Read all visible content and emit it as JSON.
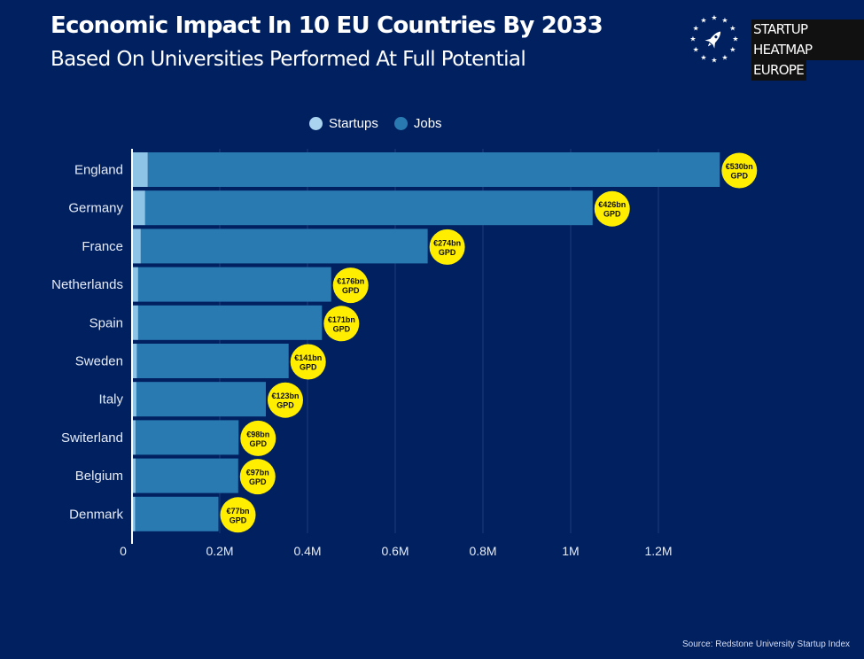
{
  "header": {
    "title": "Economic Impact In 10 EU Countries By 2033",
    "subtitle": "Based On Universities Performed At Full Potential"
  },
  "brand": {
    "line1": "STARTUP HEATMAP",
    "line2": "EUROPE",
    "icon": "rocket-stars-icon"
  },
  "colors": {
    "background": "#002060",
    "startups": "#8ec4e6",
    "jobs": "#2a7ab2",
    "badge": "#ffee00"
  },
  "chart_data": {
    "type": "bar",
    "orientation": "horizontal",
    "stacked": true,
    "categories": [
      "England",
      "Germany",
      "France",
      "Netherlands",
      "Spain",
      "Sweden",
      "Italy",
      "Switerland",
      "Belgium",
      "Denmark"
    ],
    "series": [
      {
        "name": "Startups",
        "values": [
          36000,
          30000,
          20000,
          14000,
          14000,
          11000,
          10000,
          8000,
          8000,
          7000
        ]
      },
      {
        "name": "Jobs",
        "values": [
          1304000,
          1020000,
          654000,
          440000,
          419000,
          346000,
          295000,
          235000,
          234000,
          190000
        ]
      }
    ],
    "annotations": [
      "€530bn GPD",
      "€426bn GPD",
      "€274bn GPD",
      "€176bn GPD",
      "€171bn GPD",
      "€141bn GPD",
      "€123bn GPD",
      "€98bn GPD",
      "€97bn GPD",
      "€77bn GPD"
    ],
    "xlim": [
      0,
      1340000
    ],
    "xticks": [
      0,
      200000,
      400000,
      600000,
      800000,
      1000000,
      1200000
    ],
    "xtick_labels": [
      "0",
      "0.2M",
      "0.4M",
      "0.6M",
      "0.8M",
      "1M",
      "1.2M"
    ],
    "grid": true,
    "legend_position": "top-center",
    "source": "Source: Redstone University Startup Index"
  }
}
